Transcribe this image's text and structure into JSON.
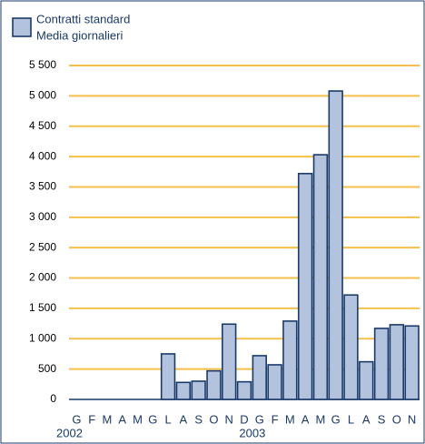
{
  "chart_data": {
    "type": "bar",
    "categories": [
      "G",
      "F",
      "M",
      "A",
      "M",
      "G",
      "L",
      "A",
      "S",
      "O",
      "N",
      "D",
      "G",
      "F",
      "M",
      "A",
      "M",
      "G",
      "L",
      "A",
      "S",
      "O",
      "N"
    ],
    "x_groups": [
      "2002",
      "2003"
    ],
    "series": [
      {
        "name": "Contratti standard",
        "color": "#b3c3dd",
        "values": [
          null,
          null,
          null,
          null,
          null,
          null,
          750,
          280,
          300,
          470,
          1240,
          290,
          720,
          570,
          1290,
          3720,
          4030,
          5080,
          1720,
          620,
          1170,
          1230,
          1210
        ]
      }
    ],
    "legend_subtitle": "Media giornalieri",
    "ylim": [
      0,
      5500
    ],
    "yticks": [
      0,
      500,
      {
        "value": 1000,
        "label": "1 000"
      },
      {
        "value": 1500,
        "label": "1 500"
      },
      {
        "value": 2000,
        "label": "2 000"
      },
      {
        "value": 2500,
        "label": "2 500"
      },
      {
        "value": 3000,
        "label": "3 000"
      },
      {
        "value": 3500,
        "label": "3 500"
      },
      {
        "value": 4000,
        "label": "4 000"
      },
      {
        "value": 4500,
        "label": "4 500"
      },
      {
        "value": 5000,
        "label": "5 000"
      },
      {
        "value": 5500,
        "label": "5 500"
      }
    ],
    "grid": true,
    "grid_color": "#f5c04a",
    "edge_color": "#1a3a6a",
    "legend": "top-left"
  }
}
